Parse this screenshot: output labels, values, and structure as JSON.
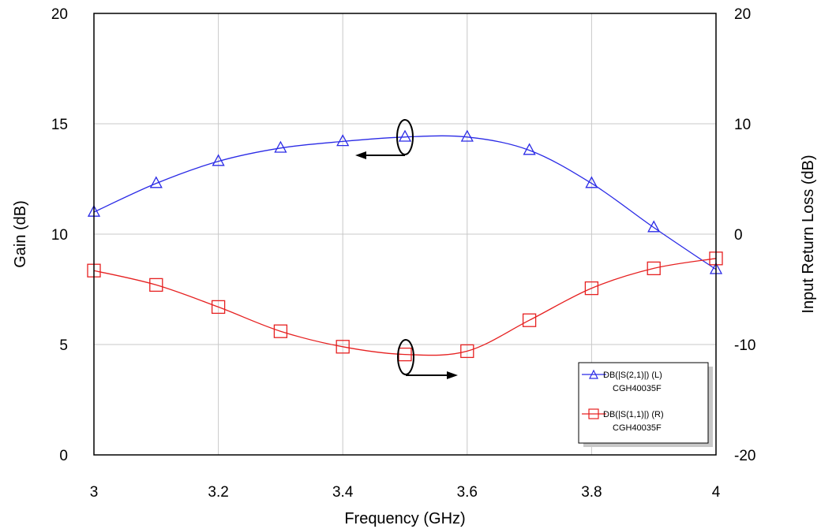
{
  "chart_data": {
    "type": "line",
    "title": "",
    "xlabel": "Frequency (GHz)",
    "ylabel_left": "Gain (dB)",
    "ylabel_right": "Input Return Loss (dB)",
    "xlim": [
      3,
      4
    ],
    "ylim_left": [
      0,
      20
    ],
    "ylim_right": [
      -20,
      20
    ],
    "x_ticks": [
      "3",
      "3.2",
      "3.4",
      "3.6",
      "3.8",
      "4"
    ],
    "x_tick_values": [
      3,
      3.2,
      3.4,
      3.6,
      3.8,
      4
    ],
    "y_left_ticks": [
      "0",
      "5",
      "10",
      "15",
      "20"
    ],
    "y_left_tick_values": [
      0,
      5,
      10,
      15,
      20
    ],
    "y_right_ticks": [
      "-20",
      "-10",
      "0",
      "10",
      "20"
    ],
    "y_right_tick_values": [
      -20,
      -10,
      0,
      10,
      20
    ],
    "grid": true,
    "legend_position": "bottom-right",
    "series": [
      {
        "name": "DB(|S(2,1)|) (L)",
        "sublabel": "CGH40035F",
        "axis": "left",
        "color": "#2a2ae6",
        "marker": "triangle",
        "x": [
          3.0,
          3.1,
          3.2,
          3.3,
          3.4,
          3.5,
          3.6,
          3.7,
          3.8,
          3.9,
          4.0
        ],
        "values": [
          11.0,
          12.3,
          13.3,
          13.9,
          14.2,
          14.4,
          14.4,
          13.8,
          12.3,
          10.3,
          8.4
        ]
      },
      {
        "name": "DB(|S(1,1)|) (R)",
        "sublabel": "CGH40035F",
        "axis": "right",
        "color": "#e62020",
        "marker": "square",
        "x": [
          3.0,
          3.1,
          3.2,
          3.3,
          3.4,
          3.5,
          3.6,
          3.7,
          3.8,
          3.9,
          4.0
        ],
        "values": [
          -3.3,
          -4.6,
          -6.6,
          -8.8,
          -10.2,
          -10.9,
          -10.6,
          -7.8,
          -4.9,
          -3.1,
          -2.2
        ]
      }
    ]
  }
}
